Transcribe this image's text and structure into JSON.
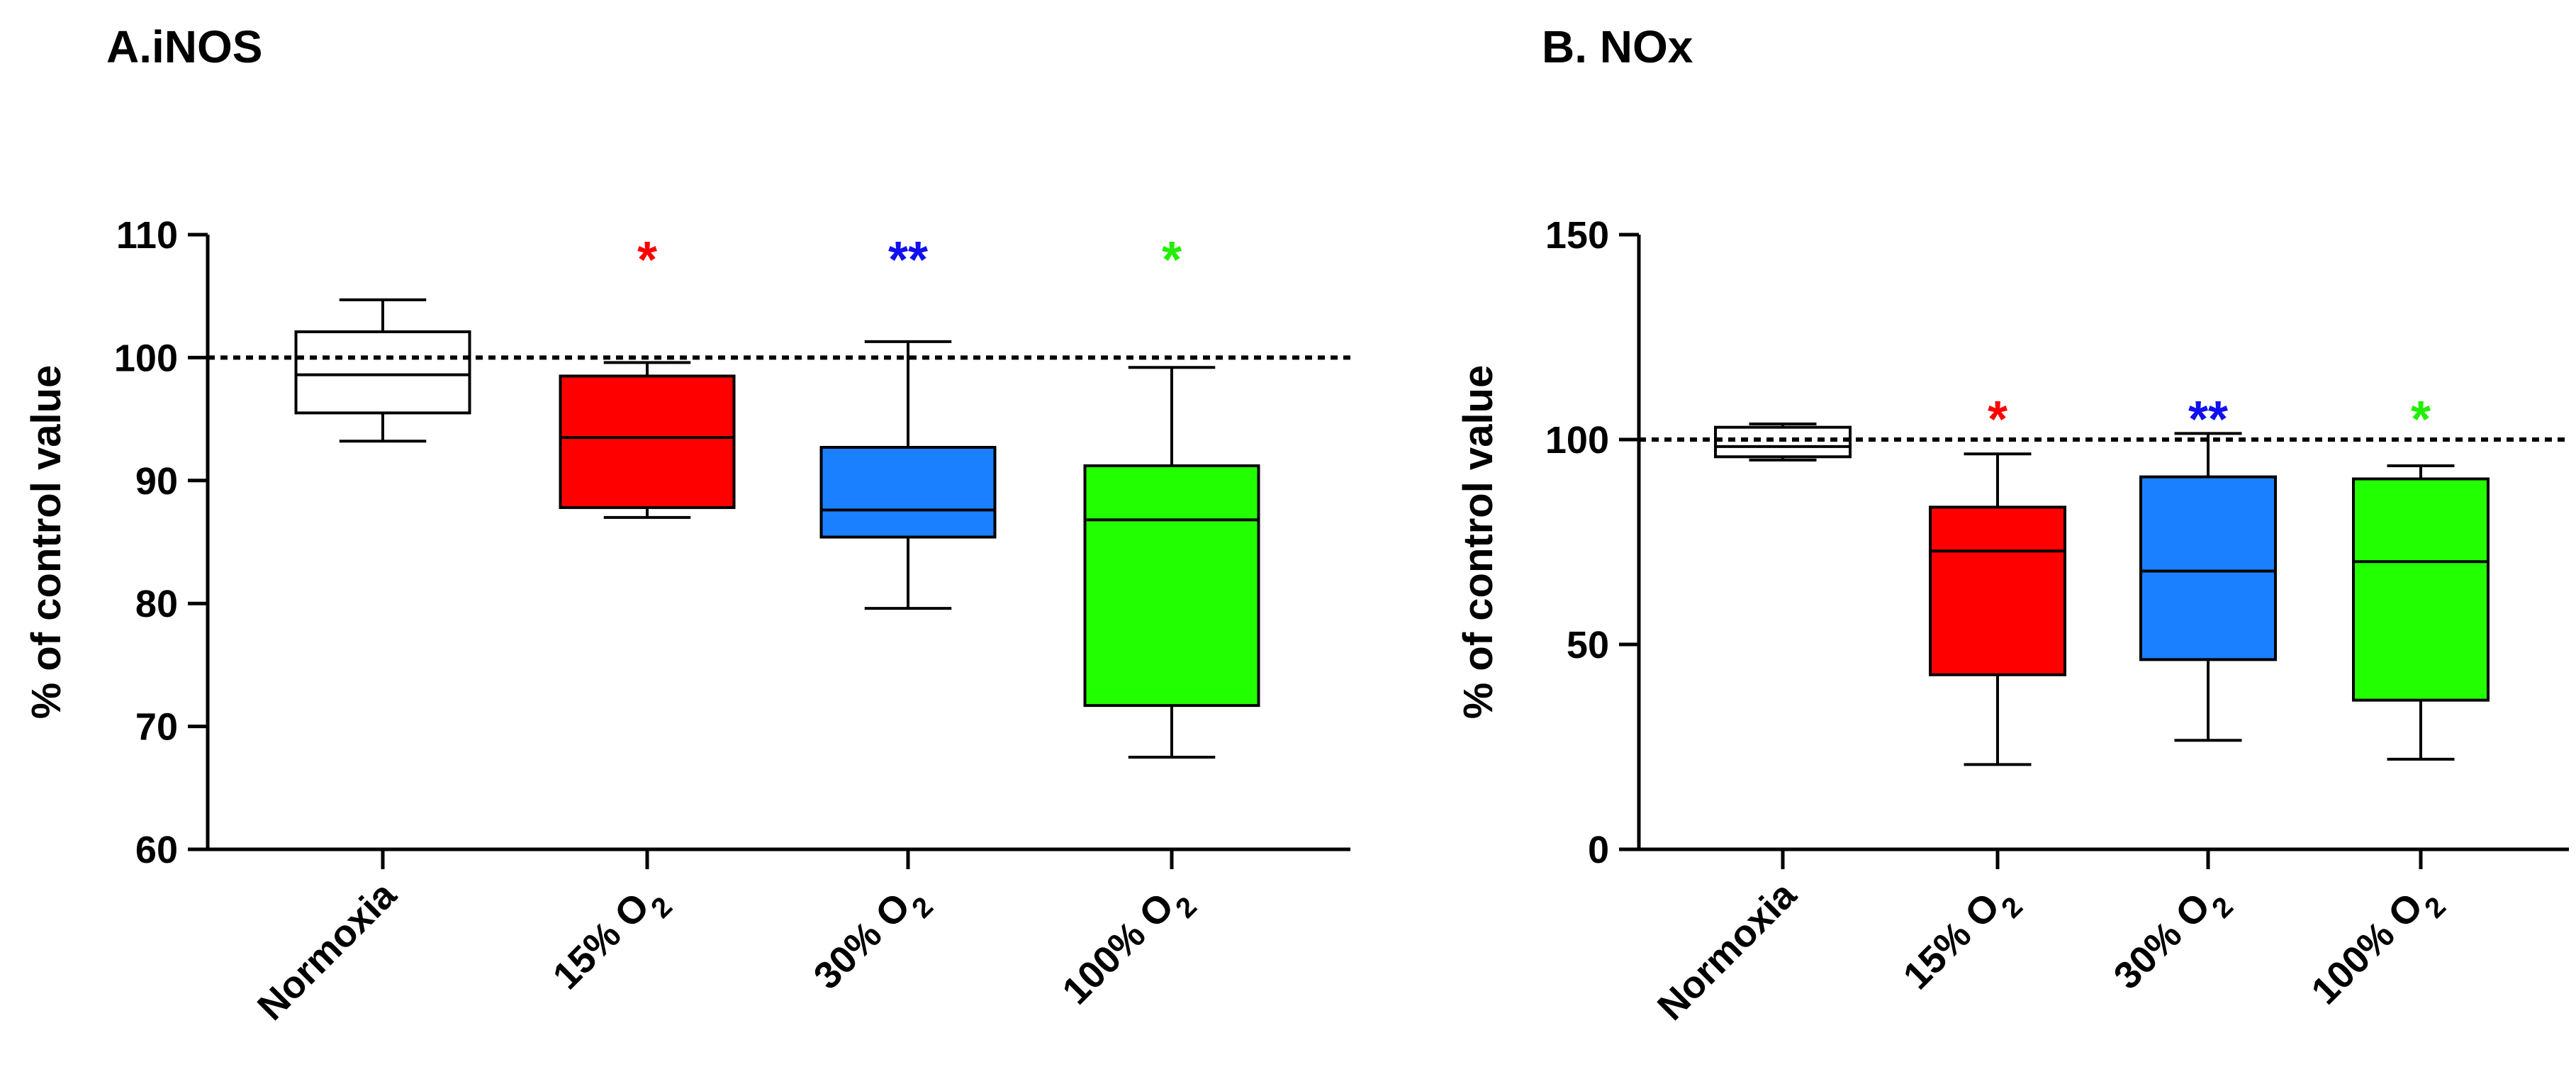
{
  "chart_data": [
    {
      "type": "box",
      "title": "A.iNOS",
      "xlabel": "",
      "ylabel": "% of control value",
      "ylim": [
        60,
        110
      ],
      "yticks": [
        60,
        70,
        80,
        90,
        100,
        110
      ],
      "reference_line": 100,
      "categories": [
        "Normoxia",
        "15% O2",
        "30% O2",
        "100% O2"
      ],
      "category_labels": [
        {
          "main": "Normoxia",
          "sub": ""
        },
        {
          "main": "15% O",
          "sub": "2"
        },
        {
          "main": "30% O",
          "sub": "2"
        },
        {
          "main": "100% O",
          "sub": "2"
        }
      ],
      "series": [
        {
          "name": "Normoxia",
          "color": "#ffffff",
          "min": 93.2,
          "q1": 95.5,
          "median": 98.6,
          "q3": 102.1,
          "max": 104.7,
          "significance": "",
          "sig_color": "#000000"
        },
        {
          "name": "15% O2",
          "color": "#ff0000",
          "min": 87.0,
          "q1": 87.8,
          "median": 93.5,
          "q3": 98.5,
          "max": 99.6,
          "significance": "*",
          "sig_color": "#ff0000"
        },
        {
          "name": "30% O2",
          "color": "#1a80ff",
          "min": 79.6,
          "q1": 85.4,
          "median": 87.6,
          "q3": 92.7,
          "max": 101.3,
          "significance": "**",
          "sig_color": "#1010f0"
        },
        {
          "name": "100% O2",
          "color": "#22ff00",
          "min": 67.5,
          "q1": 71.7,
          "median": 86.8,
          "q3": 91.2,
          "max": 99.2,
          "significance": "*",
          "sig_color": "#22ee00"
        }
      ]
    },
    {
      "type": "box",
      "title": "B. NOx",
      "xlabel": "",
      "ylabel": "% of control value",
      "ylim": [
        0,
        150
      ],
      "yticks": [
        0,
        50,
        100,
        150
      ],
      "reference_line": 100,
      "categories": [
        "Normoxia",
        "15% O2",
        "30% O2",
        "100% O2"
      ],
      "category_labels": [
        {
          "main": "Normoxia",
          "sub": ""
        },
        {
          "main": "15% O",
          "sub": "2"
        },
        {
          "main": "30% O",
          "sub": "2"
        },
        {
          "main": "100% O",
          "sub": "2"
        }
      ],
      "series": [
        {
          "name": "Normoxia",
          "color": "#ffffff",
          "min": 95.0,
          "q1": 95.8,
          "median": 98.3,
          "q3": 103.0,
          "max": 103.8,
          "significance": "",
          "sig_color": "#000000"
        },
        {
          "name": "15% O2",
          "color": "#ff0000",
          "min": 20.7,
          "q1": 42.6,
          "median": 72.8,
          "q3": 83.5,
          "max": 96.5,
          "significance": "*",
          "sig_color": "#ff0000"
        },
        {
          "name": "30% O2",
          "color": "#1a80ff",
          "min": 26.6,
          "q1": 46.3,
          "median": 67.9,
          "q3": 90.9,
          "max": 101.5,
          "significance": "**",
          "sig_color": "#1010f0"
        },
        {
          "name": "100% O2",
          "color": "#22ff00",
          "min": 22.0,
          "q1": 36.4,
          "median": 70.2,
          "q3": 90.4,
          "max": 93.6,
          "significance": "*",
          "sig_color": "#22ee00"
        }
      ]
    }
  ]
}
